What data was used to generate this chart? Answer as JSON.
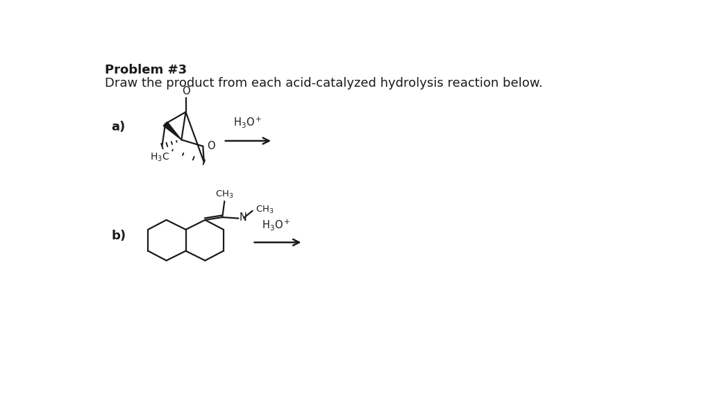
{
  "title_bold": "Problem #3",
  "title_normal": "Draw the product from each acid-catalyzed hydrolysis reaction below.",
  "label_a": "a)",
  "label_b": "b)",
  "bg_color": "#ffffff",
  "text_color": "#1a1a1a",
  "line_color": "#1a1a1a",
  "font_size_title": 13,
  "font_size_label": 13,
  "font_size_chem": 11
}
